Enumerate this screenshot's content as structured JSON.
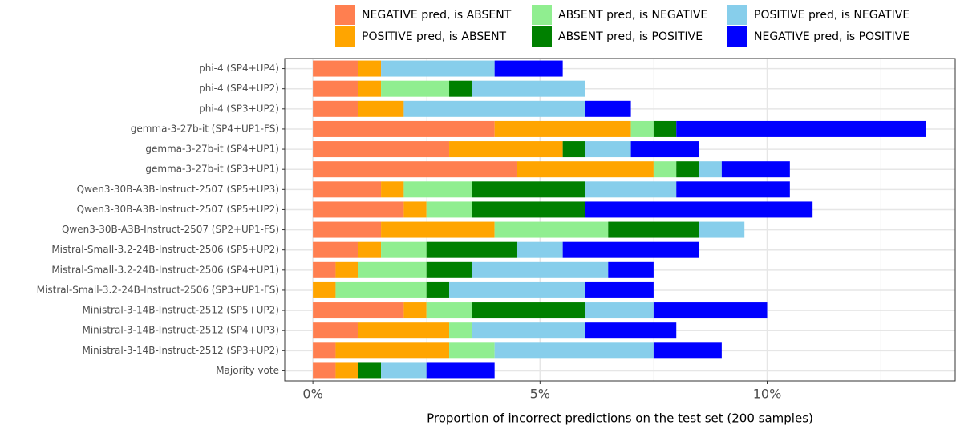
{
  "chart_data": {
    "type": "stacked-barh",
    "xlabel": "Proportion of incorrect predictions on the test set (200 samples)",
    "categories": [
      "phi-4 (SP4+UP4)",
      "phi-4 (SP4+UP2)",
      "phi-4 (SP3+UP2)",
      "gemma-3-27b-it (SP4+UP1-FS)",
      "gemma-3-27b-it (SP4+UP1)",
      "gemma-3-27b-it (SP3+UP1)",
      "Qwen3-30B-A3B-Instruct-2507 (SP5+UP3)",
      "Qwen3-30B-A3B-Instruct-2507 (SP5+UP2)",
      "Qwen3-30B-A3B-Instruct-2507 (SP2+UP1-FS)",
      "Mistral-Small-3.2-24B-Instruct-2506 (SP5+UP2)",
      "Mistral-Small-3.2-24B-Instruct-2506 (SP4+UP1)",
      "Mistral-Small-3.2-24B-Instruct-2506 (SP3+UP1-FS)",
      "Ministral-3-14B-Instruct-2512 (SP5+UP2)",
      "Ministral-3-14B-Instruct-2512 (SP4+UP3)",
      "Ministral-3-14B-Instruct-2512 (SP3+UP2)",
      "Majority vote"
    ],
    "series": [
      {
        "name": "NEGATIVE pred, is ABSENT",
        "color": "#ff7f50",
        "values": [
          1,
          1,
          1,
          4,
          3,
          4.5,
          1.5,
          2,
          1.5,
          1,
          0.5,
          0,
          2,
          1,
          0.5,
          0.5
        ]
      },
      {
        "name": "POSITIVE pred, is ABSENT",
        "color": "#ffa500",
        "values": [
          0.5,
          0.5,
          1,
          3,
          2.5,
          3,
          0.5,
          0.5,
          2.5,
          0.5,
          0.5,
          0.5,
          0.5,
          2,
          2.5,
          0.5
        ]
      },
      {
        "name": "ABSENT pred, is NEGATIVE",
        "color": "#90ee90",
        "values": [
          0,
          1.5,
          0,
          0.5,
          0,
          0.5,
          1.5,
          1,
          2.5,
          1,
          1.5,
          2,
          1,
          0.5,
          1,
          0
        ]
      },
      {
        "name": "ABSENT pred, is POSITIVE",
        "color": "#008000",
        "values": [
          0,
          0.5,
          0,
          0.5,
          0.5,
          0.5,
          2.5,
          2.5,
          2,
          2,
          1,
          0.5,
          2.5,
          0,
          0,
          0.5
        ]
      },
      {
        "name": "POSITIVE pred, is NEGATIVE",
        "color": "#87ceeb",
        "values": [
          2.5,
          2.5,
          4,
          0,
          1,
          0.5,
          2,
          0,
          1,
          1,
          3,
          3,
          1.5,
          2.5,
          3.5,
          1
        ]
      },
      {
        "name": "NEGATIVE pred, is POSITIVE",
        "color": "#0000ff",
        "values": [
          1.5,
          0,
          1,
          5.5,
          1.5,
          1.5,
          2.5,
          5,
          0,
          3,
          1,
          1.5,
          2.5,
          2,
          1.5,
          1.5
        ]
      }
    ],
    "xlim": [
      -0.62,
      14.14
    ],
    "xticks": [
      {
        "value": 0,
        "label": "0%"
      },
      {
        "value": 5,
        "label": "5%"
      },
      {
        "value": 10,
        "label": "10%"
      }
    ],
    "xminor": [
      2.5,
      7.5,
      12.5
    ],
    "grid": true,
    "legend": "top"
  }
}
